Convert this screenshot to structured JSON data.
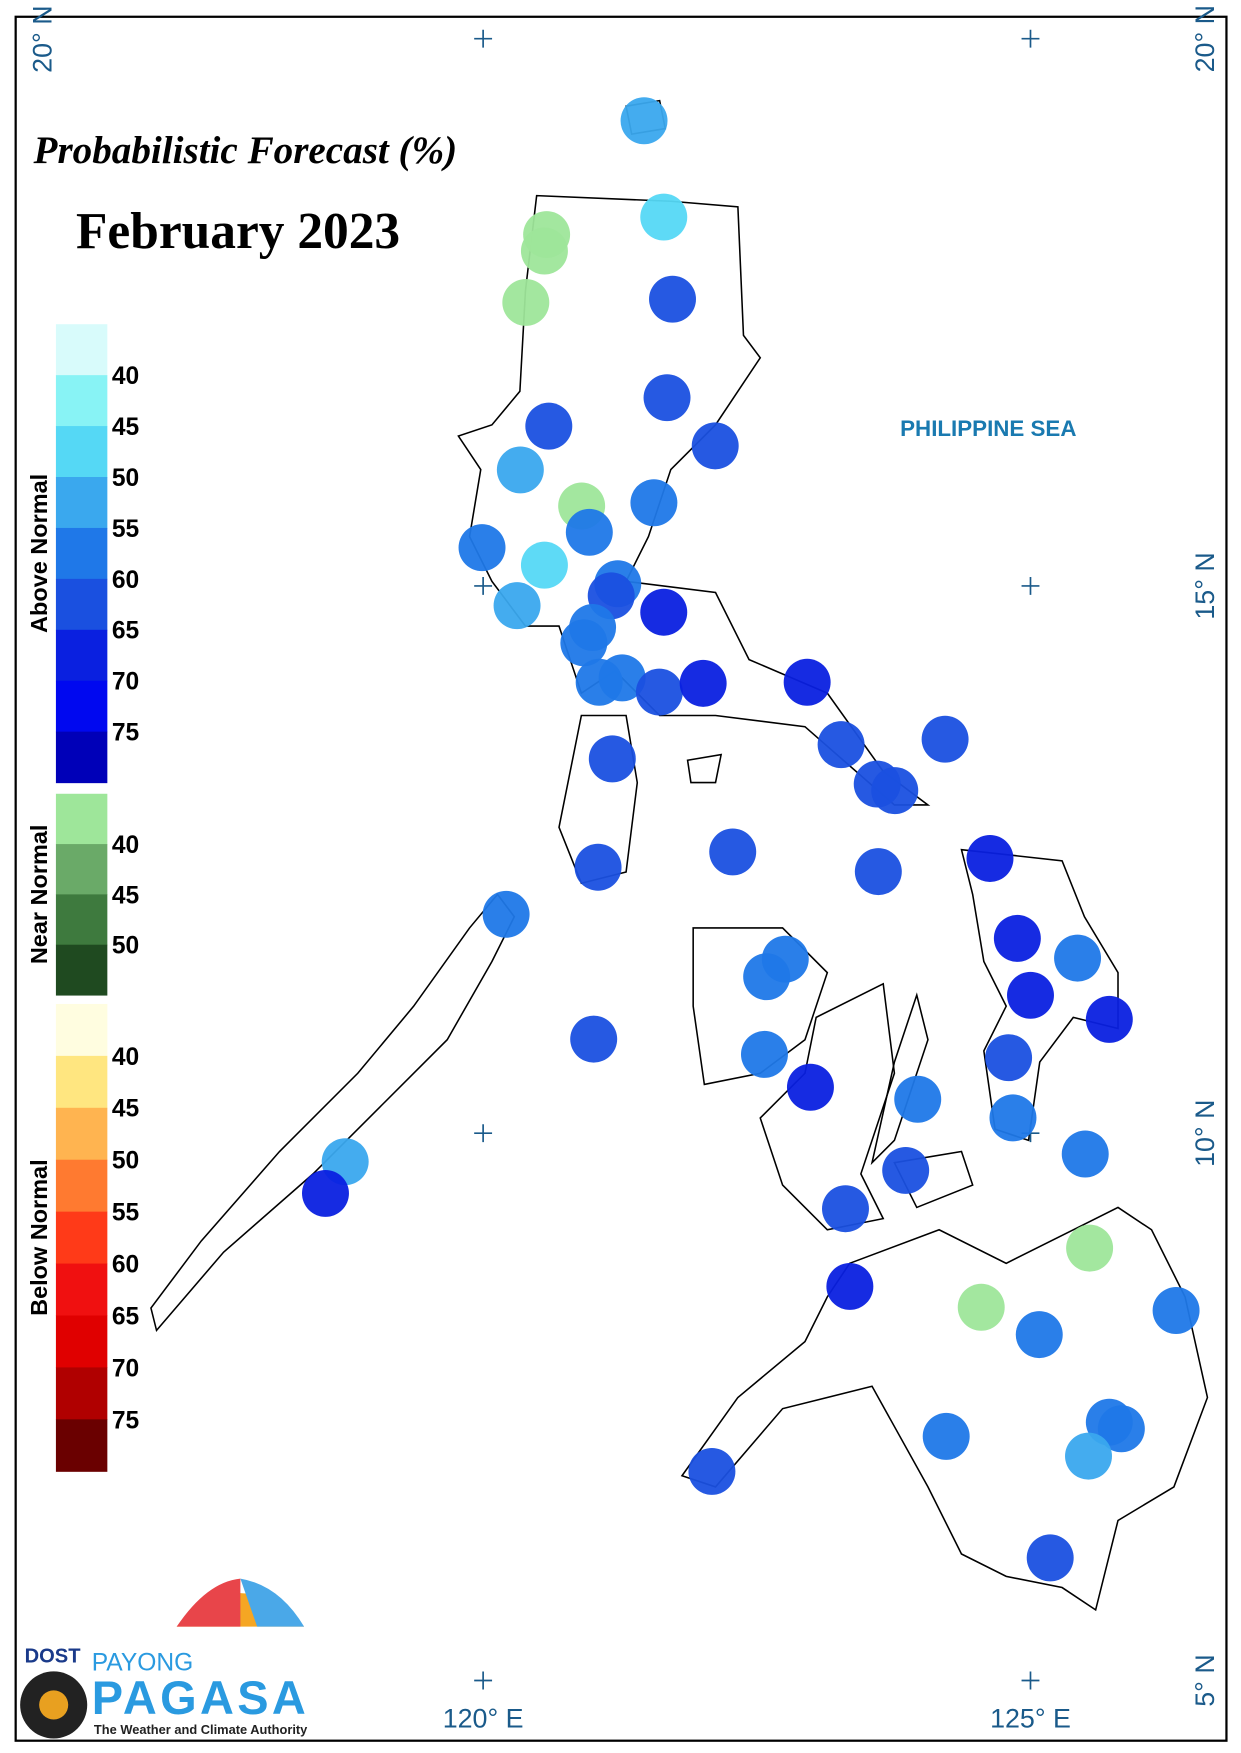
{
  "chart_data": {
    "type": "map",
    "title": "Probabilistic Forecast (%)",
    "subtitle": "February 2023",
    "sea_label": "PHILIPPINE SEA",
    "xlim": [
      115.73,
      126.79
    ],
    "ylim": [
      4.45,
      20.2
    ],
    "xticks": [
      {
        "value": 120,
        "label": "120° E"
      },
      {
        "value": 125,
        "label": "125° E"
      }
    ],
    "yticks": [
      {
        "value": 20,
        "label": "20° N"
      },
      {
        "value": 15,
        "label": "15° N"
      },
      {
        "value": 10,
        "label": "10° N"
      },
      {
        "value": 5,
        "label": "5° N"
      }
    ],
    "legend": [
      {
        "title": "Above Normal",
        "colors": [
          "#d8fbfb",
          "#88f3f5",
          "#55d8f5",
          "#3aa8ee",
          "#1f78e8",
          "#1a50e0",
          "#0a20e0",
          "#0008f0",
          "#0000b8"
        ],
        "ticks": [
          40,
          45,
          50,
          55,
          60,
          65,
          70,
          75
        ]
      },
      {
        "title": "Near Normal",
        "colors": [
          "#9ee69a",
          "#6aaa68",
          "#3e7a3e",
          "#1f4a20"
        ],
        "ticks": [
          40,
          45,
          50
        ]
      },
      {
        "title": "Below Normal",
        "colors": [
          "#fffde0",
          "#ffe680",
          "#ffb450",
          "#ff7a30",
          "#ff3a18",
          "#f01010",
          "#e00000",
          "#b00000",
          "#6a0000"
        ],
        "ticks": [
          40,
          45,
          50,
          55,
          60,
          65,
          70,
          75
        ]
      }
    ],
    "stations": [
      {
        "lon": 121.47,
        "lat": 19.25,
        "color": "#3aa8ee"
      },
      {
        "lon": 121.65,
        "lat": 18.37,
        "color": "#55d8f5"
      },
      {
        "lon": 120.58,
        "lat": 18.21,
        "color": "#9ee69a"
      },
      {
        "lon": 120.56,
        "lat": 18.06,
        "color": "#9ee69a"
      },
      {
        "lon": 121.73,
        "lat": 17.62,
        "color": "#1a50e0"
      },
      {
        "lon": 120.39,
        "lat": 17.59,
        "color": "#9ee69a"
      },
      {
        "lon": 121.68,
        "lat": 16.72,
        "color": "#1a50e0"
      },
      {
        "lon": 120.6,
        "lat": 16.46,
        "color": "#1a50e0"
      },
      {
        "lon": 122.12,
        "lat": 16.28,
        "color": "#1a50e0"
      },
      {
        "lon": 120.34,
        "lat": 16.06,
        "color": "#3aa8ee"
      },
      {
        "lon": 120.9,
        "lat": 15.73,
        "color": "#9ee69a"
      },
      {
        "lon": 121.56,
        "lat": 15.76,
        "color": "#1f78e8"
      },
      {
        "lon": 120.97,
        "lat": 15.49,
        "color": "#1f78e8"
      },
      {
        "lon": 119.99,
        "lat": 15.35,
        "color": "#1f78e8"
      },
      {
        "lon": 120.56,
        "lat": 15.19,
        "color": "#55d8f5"
      },
      {
        "lon": 121.23,
        "lat": 15.02,
        "color": "#1f78e8"
      },
      {
        "lon": 121.17,
        "lat": 14.91,
        "color": "#1a50e0"
      },
      {
        "lon": 120.31,
        "lat": 14.82,
        "color": "#3aa8ee"
      },
      {
        "lon": 121.65,
        "lat": 14.76,
        "color": "#0a20e0"
      },
      {
        "lon": 121.0,
        "lat": 14.62,
        "color": "#1f78e8"
      },
      {
        "lon": 120.92,
        "lat": 14.48,
        "color": "#1f78e8"
      },
      {
        "lon": 121.06,
        "lat": 14.12,
        "color": "#1f78e8"
      },
      {
        "lon": 121.27,
        "lat": 14.16,
        "color": "#1f78e8"
      },
      {
        "lon": 121.61,
        "lat": 14.03,
        "color": "#1a50e0"
      },
      {
        "lon": 122.01,
        "lat": 14.11,
        "color": "#0a20e0"
      },
      {
        "lon": 122.96,
        "lat": 14.12,
        "color": "#0a20e0"
      },
      {
        "lon": 124.22,
        "lat": 13.6,
        "color": "#1a50e0"
      },
      {
        "lon": 123.27,
        "lat": 13.55,
        "color": "#1a50e0"
      },
      {
        "lon": 123.6,
        "lat": 13.19,
        "color": "#1a50e0"
      },
      {
        "lon": 123.76,
        "lat": 13.13,
        "color": "#1a50e0"
      },
      {
        "lon": 121.18,
        "lat": 13.42,
        "color": "#1a50e0"
      },
      {
        "lon": 122.28,
        "lat": 12.57,
        "color": "#1a50e0"
      },
      {
        "lon": 121.05,
        "lat": 12.43,
        "color": "#1a50e0"
      },
      {
        "lon": 124.63,
        "lat": 12.51,
        "color": "#0a20e0"
      },
      {
        "lon": 123.61,
        "lat": 12.39,
        "color": "#1a50e0"
      },
      {
        "lon": 120.21,
        "lat": 12.0,
        "color": "#1f78e8"
      },
      {
        "lon": 124.88,
        "lat": 11.78,
        "color": "#0a20e0"
      },
      {
        "lon": 125.43,
        "lat": 11.6,
        "color": "#1f78e8"
      },
      {
        "lon": 122.76,
        "lat": 11.59,
        "color": "#1f78e8"
      },
      {
        "lon": 122.59,
        "lat": 11.43,
        "color": "#1f78e8"
      },
      {
        "lon": 125.0,
        "lat": 11.26,
        "color": "#0a20e0"
      },
      {
        "lon": 125.72,
        "lat": 11.04,
        "color": "#0a20e0"
      },
      {
        "lon": 121.01,
        "lat": 10.86,
        "color": "#1a50e0"
      },
      {
        "lon": 122.57,
        "lat": 10.72,
        "color": "#1f78e8"
      },
      {
        "lon": 124.8,
        "lat": 10.69,
        "color": "#1a50e0"
      },
      {
        "lon": 122.99,
        "lat": 10.42,
        "color": "#0a20e0"
      },
      {
        "lon": 123.97,
        "lat": 10.31,
        "color": "#1f78e8"
      },
      {
        "lon": 124.84,
        "lat": 10.14,
        "color": "#1f78e8"
      },
      {
        "lon": 125.5,
        "lat": 9.81,
        "color": "#1f78e8"
      },
      {
        "lon": 118.74,
        "lat": 9.74,
        "color": "#3aa8ee"
      },
      {
        "lon": 118.56,
        "lat": 9.45,
        "color": "#0a20e0"
      },
      {
        "lon": 123.86,
        "lat": 9.66,
        "color": "#1a50e0"
      },
      {
        "lon": 123.31,
        "lat": 9.31,
        "color": "#1a50e0"
      },
      {
        "lon": 125.54,
        "lat": 8.95,
        "color": "#9ee69a"
      },
      {
        "lon": 123.35,
        "lat": 8.6,
        "color": "#0a20e0"
      },
      {
        "lon": 124.55,
        "lat": 8.41,
        "color": "#9ee69a"
      },
      {
        "lon": 126.33,
        "lat": 8.38,
        "color": "#1f78e8"
      },
      {
        "lon": 125.08,
        "lat": 8.16,
        "color": "#1f78e8"
      },
      {
        "lon": 124.23,
        "lat": 7.23,
        "color": "#1f78e8"
      },
      {
        "lon": 125.72,
        "lat": 7.36,
        "color": "#1f78e8"
      },
      {
        "lon": 125.83,
        "lat": 7.3,
        "color": "#1f78e8"
      },
      {
        "lon": 125.53,
        "lat": 7.05,
        "color": "#3aa8ee"
      },
      {
        "lon": 122.09,
        "lat": 6.91,
        "color": "#1a50e0"
      },
      {
        "lon": 125.18,
        "lat": 6.12,
        "color": "#1a50e0"
      }
    ]
  },
  "logo": {
    "agency": "DOST",
    "brand_top": "PAYONG",
    "brand": "PAGASA",
    "tagline": "The Weather and Climate Authority"
  }
}
